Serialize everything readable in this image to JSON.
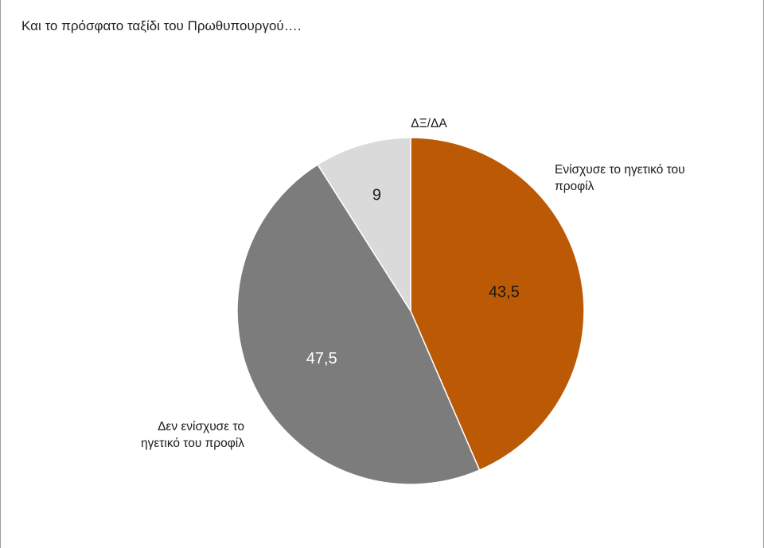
{
  "chart_data": {
    "type": "pie",
    "title": "Και το πρόσφατο ταξίδι του Πρωθυπουργού….",
    "slices": [
      {
        "label": "Ενίσχυσε το ηγετικό του προφίλ",
        "label_lines": [
          "Ενίσχυσε το ηγετικό του",
          "προφίλ"
        ],
        "value": 43.5,
        "value_text": "43,5",
        "color": "#bb5905",
        "value_color": "#1a1a1a"
      },
      {
        "label": "Δεν ενίσχυσε το ηγετικό του προφίλ",
        "label_lines": [
          "Δεν ενίσχυσε το",
          "ηγετικό του προφίλ"
        ],
        "value": 47.5,
        "value_text": "47,5",
        "color": "#7b7c7b",
        "value_color": "#ffffff"
      },
      {
        "label": "ΔΞ/ΔΑ",
        "label_lines": [
          "ΔΞ/ΔΑ"
        ],
        "value": 9,
        "value_text": "9",
        "color": "#dadada",
        "value_color": "#1a1a1a"
      }
    ],
    "start_angle": "12 o'clock",
    "direction": "clockwise",
    "legend": "none"
  }
}
